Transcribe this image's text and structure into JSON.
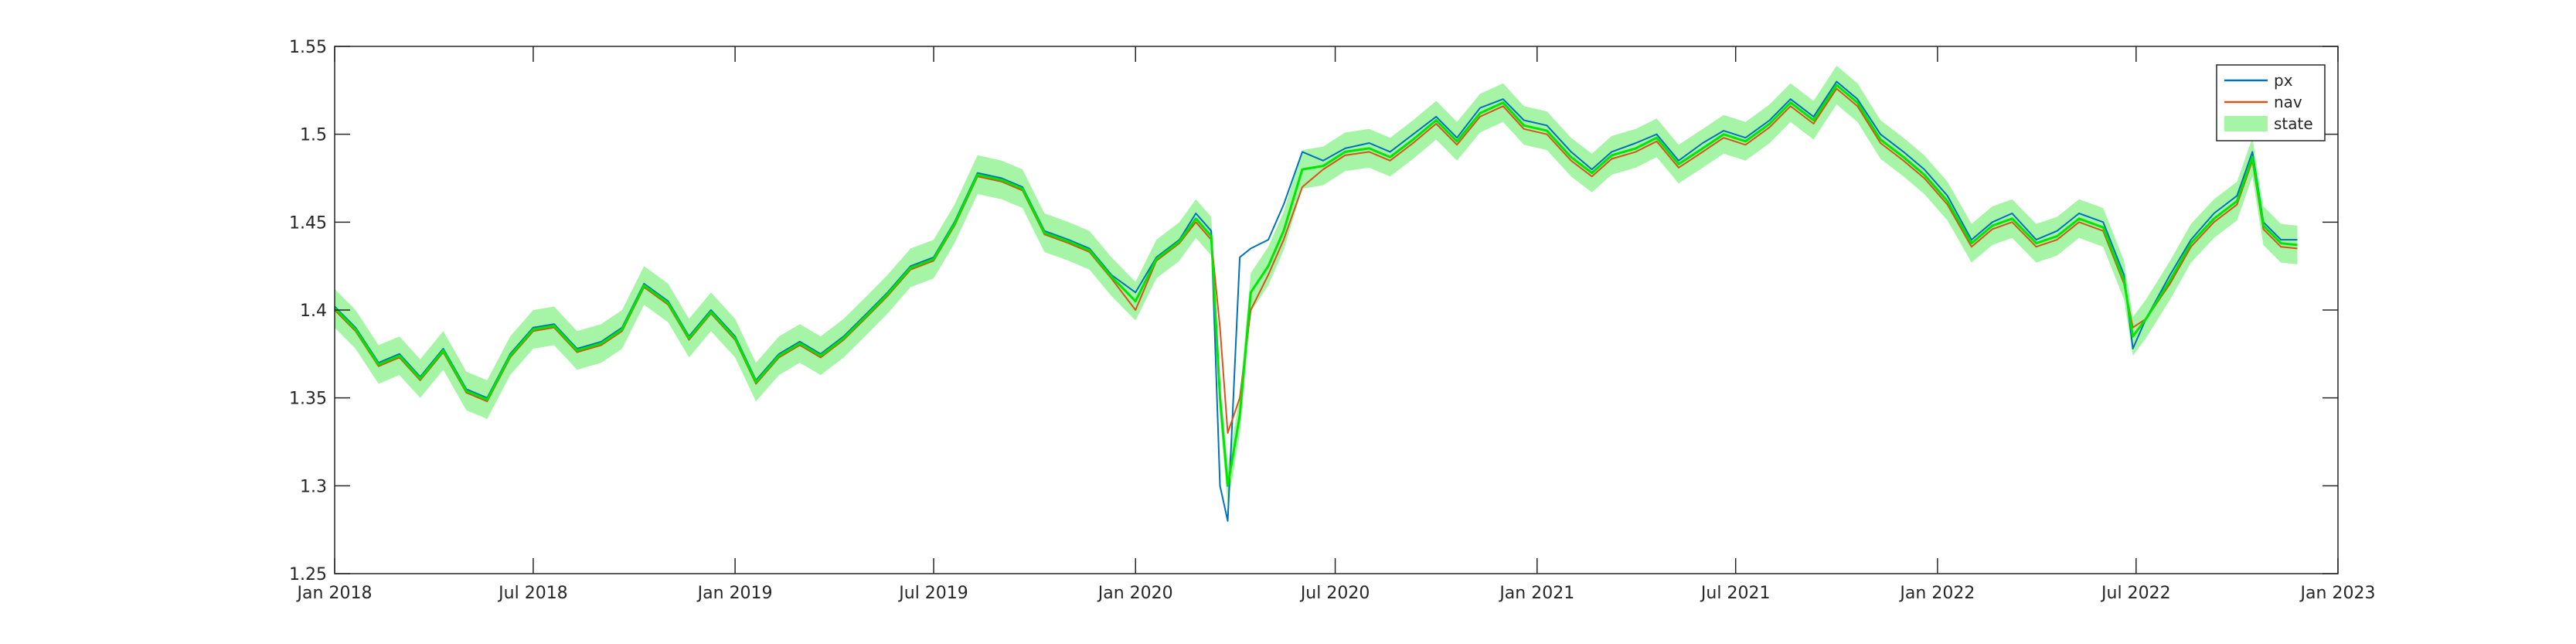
{
  "chart_data": {
    "type": "line",
    "title": "",
    "xlabel": "",
    "ylabel": "",
    "grid": false,
    "legend_position": "top-right",
    "xlim": [
      "2018-01-01",
      "2023-01-01"
    ],
    "ylim": [
      1.25,
      1.55
    ],
    "x_ticks": [
      {
        "date": "2018-01-01",
        "label": "Jan 2018"
      },
      {
        "date": "2018-07-01",
        "label": "Jul 2018"
      },
      {
        "date": "2019-01-01",
        "label": "Jan 2019"
      },
      {
        "date": "2019-07-01",
        "label": "Jul 2019"
      },
      {
        "date": "2020-01-01",
        "label": "Jan 2020"
      },
      {
        "date": "2020-07-01",
        "label": "Jul 2020"
      },
      {
        "date": "2021-01-01",
        "label": "Jan 2021"
      },
      {
        "date": "2021-07-01",
        "label": "Jul 2021"
      },
      {
        "date": "2022-01-01",
        "label": "Jan 2022"
      },
      {
        "date": "2022-07-01",
        "label": "Jul 2022"
      },
      {
        "date": "2023-01-01",
        "label": "Jan 2023"
      }
    ],
    "y_ticks": [
      {
        "value": 1.25,
        "label": "1.25"
      },
      {
        "value": 1.3,
        "label": "1.3"
      },
      {
        "value": 1.35,
        "label": "1.35"
      },
      {
        "value": 1.4,
        "label": "1.4"
      },
      {
        "value": 1.45,
        "label": "1.45"
      },
      {
        "value": 1.5,
        "label": "1.5"
      },
      {
        "value": 1.55,
        "label": "1.55"
      }
    ],
    "state_band_halfwidth": 0.011,
    "series": [
      {
        "name": "px",
        "color": "#0072BD",
        "x": [
          "2018-01-01",
          "2018-01-20",
          "2018-02-10",
          "2018-03-01",
          "2018-03-20",
          "2018-04-10",
          "2018-05-01",
          "2018-05-20",
          "2018-06-10",
          "2018-07-01",
          "2018-07-20",
          "2018-08-10",
          "2018-09-01",
          "2018-09-20",
          "2018-10-10",
          "2018-11-01",
          "2018-11-20",
          "2018-12-10",
          "2019-01-01",
          "2019-01-20",
          "2019-02-10",
          "2019-03-01",
          "2019-03-20",
          "2019-04-10",
          "2019-05-01",
          "2019-05-20",
          "2019-06-10",
          "2019-07-01",
          "2019-07-20",
          "2019-08-10",
          "2019-09-01",
          "2019-09-20",
          "2019-10-10",
          "2019-11-01",
          "2019-11-20",
          "2019-12-10",
          "2020-01-01",
          "2020-01-20",
          "2020-02-10",
          "2020-02-25",
          "2020-03-10",
          "2020-03-18",
          "2020-03-25",
          "2020-04-05",
          "2020-04-15",
          "2020-05-01",
          "2020-05-15",
          "2020-06-01",
          "2020-06-20",
          "2020-07-10",
          "2020-08-01",
          "2020-08-20",
          "2020-09-10",
          "2020-10-01",
          "2020-10-20",
          "2020-11-10",
          "2020-12-01",
          "2020-12-20",
          "2021-01-10",
          "2021-02-01",
          "2021-02-20",
          "2021-03-10",
          "2021-04-01",
          "2021-04-20",
          "2021-05-10",
          "2021-06-01",
          "2021-06-20",
          "2021-07-10",
          "2021-08-01",
          "2021-08-20",
          "2021-09-10",
          "2021-10-01",
          "2021-10-20",
          "2021-11-10",
          "2021-12-01",
          "2021-12-20",
          "2022-01-10",
          "2022-02-01",
          "2022-02-20",
          "2022-03-10",
          "2022-04-01",
          "2022-04-20",
          "2022-05-10",
          "2022-06-01",
          "2022-06-20",
          "2022-06-28",
          "2022-07-10",
          "2022-08-01",
          "2022-08-20",
          "2022-09-10",
          "2022-10-01",
          "2022-10-15",
          "2022-10-25",
          "2022-11-10",
          "2022-11-25"
        ],
        "values": [
          1.402,
          1.39,
          1.37,
          1.375,
          1.362,
          1.378,
          1.355,
          1.35,
          1.375,
          1.39,
          1.392,
          1.378,
          1.382,
          1.39,
          1.415,
          1.405,
          1.385,
          1.4,
          1.385,
          1.36,
          1.375,
          1.382,
          1.375,
          1.385,
          1.398,
          1.41,
          1.425,
          1.43,
          1.45,
          1.478,
          1.475,
          1.47,
          1.445,
          1.44,
          1.435,
          1.42,
          1.41,
          1.43,
          1.44,
          1.455,
          1.445,
          1.3,
          1.28,
          1.43,
          1.435,
          1.44,
          1.46,
          1.49,
          1.485,
          1.492,
          1.495,
          1.49,
          1.5,
          1.51,
          1.498,
          1.515,
          1.52,
          1.508,
          1.505,
          1.49,
          1.48,
          1.49,
          1.495,
          1.5,
          1.485,
          1.495,
          1.502,
          1.498,
          1.508,
          1.52,
          1.51,
          1.53,
          1.52,
          1.5,
          1.49,
          1.48,
          1.465,
          1.44,
          1.45,
          1.455,
          1.44,
          1.445,
          1.455,
          1.45,
          1.42,
          1.378,
          1.395,
          1.42,
          1.44,
          1.455,
          1.465,
          1.49,
          1.45,
          1.44,
          1.44
        ]
      },
      {
        "name": "nav",
        "color": "#D95319",
        "x": [
          "2018-01-01",
          "2018-01-20",
          "2018-02-10",
          "2018-03-01",
          "2018-03-20",
          "2018-04-10",
          "2018-05-01",
          "2018-05-20",
          "2018-06-10",
          "2018-07-01",
          "2018-07-20",
          "2018-08-10",
          "2018-09-01",
          "2018-09-20",
          "2018-10-10",
          "2018-11-01",
          "2018-11-20",
          "2018-12-10",
          "2019-01-01",
          "2019-01-20",
          "2019-02-10",
          "2019-03-01",
          "2019-03-20",
          "2019-04-10",
          "2019-05-01",
          "2019-05-20",
          "2019-06-10",
          "2019-07-01",
          "2019-07-20",
          "2019-08-10",
          "2019-09-01",
          "2019-09-20",
          "2019-10-10",
          "2019-11-01",
          "2019-11-20",
          "2019-12-10",
          "2020-01-01",
          "2020-01-20",
          "2020-02-10",
          "2020-02-25",
          "2020-03-10",
          "2020-03-18",
          "2020-03-25",
          "2020-04-05",
          "2020-04-15",
          "2020-05-01",
          "2020-05-15",
          "2020-06-01",
          "2020-06-20",
          "2020-07-10",
          "2020-08-01",
          "2020-08-20",
          "2020-09-10",
          "2020-10-01",
          "2020-10-20",
          "2020-11-10",
          "2020-12-01",
          "2020-12-20",
          "2021-01-10",
          "2021-02-01",
          "2021-02-20",
          "2021-03-10",
          "2021-04-01",
          "2021-04-20",
          "2021-05-10",
          "2021-06-01",
          "2021-06-20",
          "2021-07-10",
          "2021-08-01",
          "2021-08-20",
          "2021-09-10",
          "2021-10-01",
          "2021-10-20",
          "2021-11-10",
          "2021-12-01",
          "2021-12-20",
          "2022-01-10",
          "2022-02-01",
          "2022-02-20",
          "2022-03-10",
          "2022-04-01",
          "2022-04-20",
          "2022-05-10",
          "2022-06-01",
          "2022-06-20",
          "2022-06-28",
          "2022-07-10",
          "2022-08-01",
          "2022-08-20",
          "2022-09-10",
          "2022-10-01",
          "2022-10-15",
          "2022-10-25",
          "2022-11-10",
          "2022-11-25"
        ],
        "values": [
          1.4,
          1.388,
          1.368,
          1.373,
          1.36,
          1.376,
          1.353,
          1.348,
          1.373,
          1.388,
          1.39,
          1.376,
          1.38,
          1.388,
          1.413,
          1.403,
          1.383,
          1.398,
          1.383,
          1.358,
          1.373,
          1.38,
          1.373,
          1.383,
          1.396,
          1.408,
          1.423,
          1.428,
          1.448,
          1.476,
          1.473,
          1.468,
          1.443,
          1.438,
          1.433,
          1.418,
          1.4,
          1.428,
          1.438,
          1.45,
          1.44,
          1.39,
          1.33,
          1.35,
          1.4,
          1.42,
          1.44,
          1.47,
          1.48,
          1.488,
          1.49,
          1.485,
          1.495,
          1.506,
          1.494,
          1.51,
          1.516,
          1.503,
          1.5,
          1.485,
          1.476,
          1.486,
          1.49,
          1.496,
          1.481,
          1.49,
          1.498,
          1.494,
          1.504,
          1.516,
          1.506,
          1.526,
          1.516,
          1.495,
          1.485,
          1.475,
          1.46,
          1.436,
          1.446,
          1.45,
          1.436,
          1.44,
          1.45,
          1.445,
          1.415,
          1.39,
          1.395,
          1.415,
          1.436,
          1.45,
          1.46,
          1.485,
          1.446,
          1.436,
          1.435
        ]
      },
      {
        "name": "state",
        "color": "#00E600",
        "band_color": "#A6F5A6",
        "x": [
          "2018-01-01",
          "2018-01-20",
          "2018-02-10",
          "2018-03-01",
          "2018-03-20",
          "2018-04-10",
          "2018-05-01",
          "2018-05-20",
          "2018-06-10",
          "2018-07-01",
          "2018-07-20",
          "2018-08-10",
          "2018-09-01",
          "2018-09-20",
          "2018-10-10",
          "2018-11-01",
          "2018-11-20",
          "2018-12-10",
          "2019-01-01",
          "2019-01-20",
          "2019-02-10",
          "2019-03-01",
          "2019-03-20",
          "2019-04-10",
          "2019-05-01",
          "2019-05-20",
          "2019-06-10",
          "2019-07-01",
          "2019-07-20",
          "2019-08-10",
          "2019-09-01",
          "2019-09-20",
          "2019-10-10",
          "2019-11-01",
          "2019-11-20",
          "2019-12-10",
          "2020-01-01",
          "2020-01-20",
          "2020-02-10",
          "2020-02-25",
          "2020-03-10",
          "2020-03-18",
          "2020-03-25",
          "2020-04-05",
          "2020-04-15",
          "2020-05-01",
          "2020-05-15",
          "2020-06-01",
          "2020-06-20",
          "2020-07-10",
          "2020-08-01",
          "2020-08-20",
          "2020-09-10",
          "2020-10-01",
          "2020-10-20",
          "2020-11-10",
          "2020-12-01",
          "2020-12-20",
          "2021-01-10",
          "2021-02-01",
          "2021-02-20",
          "2021-03-10",
          "2021-04-01",
          "2021-04-20",
          "2021-05-10",
          "2021-06-01",
          "2021-06-20",
          "2021-07-10",
          "2021-08-01",
          "2021-08-20",
          "2021-09-10",
          "2021-10-01",
          "2021-10-20",
          "2021-11-10",
          "2021-12-01",
          "2021-12-20",
          "2022-01-10",
          "2022-02-01",
          "2022-02-20",
          "2022-03-10",
          "2022-04-01",
          "2022-04-20",
          "2022-05-10",
          "2022-06-01",
          "2022-06-20",
          "2022-06-28",
          "2022-07-10",
          "2022-08-01",
          "2022-08-20",
          "2022-09-10",
          "2022-10-01",
          "2022-10-15",
          "2022-10-25",
          "2022-11-10",
          "2022-11-25"
        ],
        "values": [
          1.401,
          1.389,
          1.369,
          1.374,
          1.361,
          1.377,
          1.354,
          1.349,
          1.374,
          1.389,
          1.391,
          1.377,
          1.381,
          1.389,
          1.414,
          1.404,
          1.384,
          1.399,
          1.384,
          1.359,
          1.374,
          1.381,
          1.374,
          1.384,
          1.397,
          1.409,
          1.424,
          1.429,
          1.449,
          1.477,
          1.474,
          1.469,
          1.444,
          1.439,
          1.434,
          1.419,
          1.405,
          1.429,
          1.439,
          1.452,
          1.442,
          1.35,
          1.3,
          1.34,
          1.41,
          1.425,
          1.445,
          1.48,
          1.482,
          1.49,
          1.492,
          1.487,
          1.497,
          1.508,
          1.496,
          1.512,
          1.518,
          1.505,
          1.502,
          1.487,
          1.478,
          1.488,
          1.492,
          1.498,
          1.483,
          1.492,
          1.5,
          1.496,
          1.506,
          1.518,
          1.508,
          1.528,
          1.518,
          1.497,
          1.487,
          1.477,
          1.462,
          1.438,
          1.448,
          1.452,
          1.438,
          1.442,
          1.452,
          1.447,
          1.417,
          1.385,
          1.395,
          1.417,
          1.438,
          1.452,
          1.462,
          1.487,
          1.448,
          1.438,
          1.437
        ]
      }
    ]
  }
}
